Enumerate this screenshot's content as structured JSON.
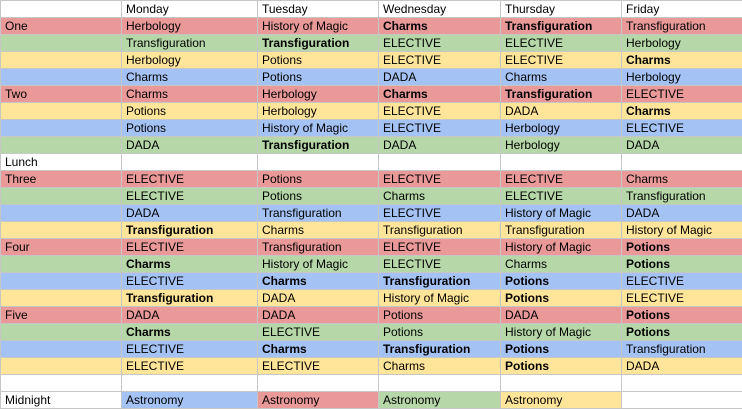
{
  "colors": {
    "red": "#ea9999",
    "green": "#b6d7a8",
    "yellow": "#ffe599",
    "blue": "#a4c2f4",
    "white": "#ffffff"
  },
  "header": [
    "",
    "Monday",
    "Tuesday",
    "Wednesday",
    "Thursday",
    "Friday"
  ],
  "rows": [
    {
      "label": "One",
      "color": "red",
      "cells": [
        {
          "t": "Herbology"
        },
        {
          "t": "History of Magic"
        },
        {
          "t": "Charms",
          "b": true
        },
        {
          "t": "Transfiguration",
          "b": true
        },
        {
          "t": "Transfiguration"
        }
      ]
    },
    {
      "label": "",
      "color": "green",
      "cells": [
        {
          "t": "Transfiguration"
        },
        {
          "t": "Transfiguration",
          "b": true
        },
        {
          "t": "ELECTIVE"
        },
        {
          "t": "ELECTIVE"
        },
        {
          "t": "Herbology"
        }
      ]
    },
    {
      "label": "",
      "color": "yellow",
      "cells": [
        {
          "t": "Herbology"
        },
        {
          "t": "Potions"
        },
        {
          "t": "ELECTIVE"
        },
        {
          "t": "ELECTIVE"
        },
        {
          "t": "Charms",
          "b": true
        }
      ]
    },
    {
      "label": "",
      "color": "blue",
      "cells": [
        {
          "t": "Charms"
        },
        {
          "t": "Potions"
        },
        {
          "t": "DADA"
        },
        {
          "t": "Charms"
        },
        {
          "t": "Herbology"
        }
      ]
    },
    {
      "label": "Two",
      "color": "red",
      "cells": [
        {
          "t": "Charms"
        },
        {
          "t": "Herbology"
        },
        {
          "t": "Charms",
          "b": true
        },
        {
          "t": "Transfiguration",
          "b": true
        },
        {
          "t": "ELECTIVE"
        }
      ]
    },
    {
      "label": "",
      "color": "yellow",
      "cells": [
        {
          "t": "Potions"
        },
        {
          "t": "Herbology"
        },
        {
          "t": "ELECTIVE"
        },
        {
          "t": "DADA"
        },
        {
          "t": "Charms",
          "b": true
        }
      ]
    },
    {
      "label": "",
      "color": "blue",
      "cells": [
        {
          "t": "Potions"
        },
        {
          "t": "History of Magic"
        },
        {
          "t": "ELECTIVE"
        },
        {
          "t": "Herbology"
        },
        {
          "t": "ELECTIVE"
        }
      ]
    },
    {
      "label": "",
      "color": "green",
      "cells": [
        {
          "t": "DADA"
        },
        {
          "t": "Transfiguration",
          "b": true
        },
        {
          "t": "DADA"
        },
        {
          "t": "Herbology"
        },
        {
          "t": "DADA"
        }
      ]
    },
    {
      "label": "Lunch",
      "color": "white",
      "cells": [
        {
          "t": ""
        },
        {
          "t": ""
        },
        {
          "t": ""
        },
        {
          "t": ""
        },
        {
          "t": ""
        }
      ]
    },
    {
      "label": "Three",
      "color": "red",
      "cells": [
        {
          "t": "ELECTIVE"
        },
        {
          "t": "Potions"
        },
        {
          "t": "ELECTIVE"
        },
        {
          "t": "ELECTIVE"
        },
        {
          "t": "Charms"
        }
      ]
    },
    {
      "label": "",
      "color": "green",
      "cells": [
        {
          "t": "ELECTIVE"
        },
        {
          "t": "Potions"
        },
        {
          "t": "Charms"
        },
        {
          "t": "ELECTIVE"
        },
        {
          "t": "Transfiguration"
        }
      ]
    },
    {
      "label": "",
      "color": "blue",
      "cells": [
        {
          "t": "DADA"
        },
        {
          "t": "Transfiguration"
        },
        {
          "t": "ELECTIVE"
        },
        {
          "t": "History of Magic"
        },
        {
          "t": "DADA"
        }
      ]
    },
    {
      "label": "",
      "color": "yellow",
      "cells": [
        {
          "t": "Transfiguration",
          "b": true
        },
        {
          "t": "Charms"
        },
        {
          "t": "Transfiguration"
        },
        {
          "t": "Transfiguration"
        },
        {
          "t": "History of Magic"
        }
      ]
    },
    {
      "label": "Four",
      "color": "red",
      "cells": [
        {
          "t": "ELECTIVE"
        },
        {
          "t": "Transfiguration"
        },
        {
          "t": "ELECTIVE"
        },
        {
          "t": "History of Magic"
        },
        {
          "t": "Potions",
          "b": true
        }
      ]
    },
    {
      "label": "",
      "color": "green",
      "cells": [
        {
          "t": "Charms",
          "b": true
        },
        {
          "t": "History of Magic"
        },
        {
          "t": "ELECTIVE"
        },
        {
          "t": "Charms"
        },
        {
          "t": "Potions",
          "b": true
        }
      ]
    },
    {
      "label": "",
      "color": "blue",
      "cells": [
        {
          "t": "ELECTIVE"
        },
        {
          "t": "Charms",
          "b": true
        },
        {
          "t": "Transfiguration",
          "b": true
        },
        {
          "t": "Potions",
          "b": true
        },
        {
          "t": "ELECTIVE"
        }
      ]
    },
    {
      "label": "",
      "color": "yellow",
      "cells": [
        {
          "t": "Transfiguration",
          "b": true
        },
        {
          "t": "DADA"
        },
        {
          "t": "History of Magic"
        },
        {
          "t": "Potions",
          "b": true
        },
        {
          "t": "ELECTIVE"
        }
      ]
    },
    {
      "label": "Five",
      "color": "red",
      "cells": [
        {
          "t": "DADA"
        },
        {
          "t": "DADA"
        },
        {
          "t": "Potions"
        },
        {
          "t": "DADA"
        },
        {
          "t": "Potions",
          "b": true
        }
      ]
    },
    {
      "label": "",
      "color": "green",
      "cells": [
        {
          "t": "Charms",
          "b": true
        },
        {
          "t": "ELECTIVE"
        },
        {
          "t": "Potions"
        },
        {
          "t": "History of Magic"
        },
        {
          "t": "Potions",
          "b": true
        }
      ]
    },
    {
      "label": "",
      "color": "blue",
      "cells": [
        {
          "t": "ELECTIVE"
        },
        {
          "t": "Charms",
          "b": true
        },
        {
          "t": "Transfiguration",
          "b": true
        },
        {
          "t": "Potions",
          "b": true
        },
        {
          "t": "Transfiguration"
        }
      ]
    },
    {
      "label": "",
      "color": "yellow",
      "cells": [
        {
          "t": "ELECTIVE"
        },
        {
          "t": "ELECTIVE"
        },
        {
          "t": "Charms"
        },
        {
          "t": "Potions",
          "b": true
        },
        {
          "t": "DADA"
        }
      ]
    },
    {
      "label": "",
      "color": "white",
      "cells": [
        {
          "t": ""
        },
        {
          "t": ""
        },
        {
          "t": ""
        },
        {
          "t": ""
        },
        {
          "t": ""
        }
      ]
    },
    {
      "label": "Midnight",
      "color": "white",
      "cells": [
        {
          "t": "Astronomy",
          "c": "blue"
        },
        {
          "t": "Astronomy",
          "c": "red"
        },
        {
          "t": "Astronomy",
          "c": "green"
        },
        {
          "t": "Astronomy",
          "c": "yellow"
        },
        {
          "t": ""
        }
      ]
    }
  ]
}
